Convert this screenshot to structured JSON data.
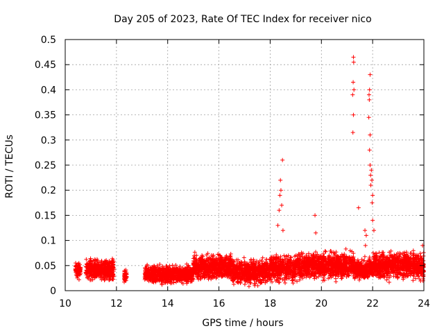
{
  "chart_data": {
    "type": "scatter",
    "title": "Day 205 of 2023, Rate Of TEC Index for receiver nico",
    "xlabel": "GPS time / hours",
    "ylabel": "ROTI / TECUs",
    "xlim": [
      10,
      24
    ],
    "ylim": [
      0,
      0.5
    ],
    "xticks": [
      10,
      12,
      14,
      16,
      18,
      20,
      22,
      24
    ],
    "yticks": [
      0,
      0.05,
      0.1,
      0.15,
      0.2,
      0.25,
      0.3,
      0.35,
      0.4,
      0.45,
      0.5
    ],
    "ytick_labels": [
      "0",
      "0.05",
      "0.1",
      "0.15",
      "0.2",
      "0.25",
      "0.3",
      "0.35",
      "0.4",
      "0.45",
      "0.5"
    ],
    "grid": true,
    "marker": "+",
    "color": "#ff0000",
    "series": [
      {
        "name": "ROTI",
        "description": "dense background band of ROTI values between ~0.01 and ~0.08 TECU/s from 10.4 to 24 h with gaps near 12.1-12.3 and 12.5-13.1 h",
        "band_segments": [
          {
            "x": [
              10.4,
              10.6
            ],
            "y": [
              0.02,
              0.06
            ]
          },
          {
            "x": [
              10.8,
              11.9
            ],
            "y": [
              0.015,
              0.07
            ]
          },
          {
            "x": [
              12.3,
              12.4
            ],
            "y": [
              0.015,
              0.045
            ]
          },
          {
            "x": [
              13.1,
              15.0
            ],
            "y": [
              0.01,
              0.055
            ]
          },
          {
            "x": [
              15.0,
              16.5
            ],
            "y": [
              0.015,
              0.08
            ]
          },
          {
            "x": [
              16.5,
              18.0
            ],
            "y": [
              0.005,
              0.07
            ]
          },
          {
            "x": [
              18.0,
              19.0
            ],
            "y": [
              0.01,
              0.08
            ]
          },
          {
            "x": [
              19.0,
              21.3
            ],
            "y": [
              0.015,
              0.085
            ]
          },
          {
            "x": [
              21.3,
              22.0
            ],
            "y": [
              0.015,
              0.07
            ]
          },
          {
            "x": [
              22.0,
              24.0
            ],
            "y": [
              0.015,
              0.085
            ]
          }
        ],
        "spikes": [
          {
            "x": 18.3,
            "y": 0.13
          },
          {
            "x": 18.35,
            "y": 0.16
          },
          {
            "x": 18.38,
            "y": 0.19
          },
          {
            "x": 18.4,
            "y": 0.22
          },
          {
            "x": 18.42,
            "y": 0.2
          },
          {
            "x": 18.45,
            "y": 0.17
          },
          {
            "x": 18.48,
            "y": 0.26
          },
          {
            "x": 18.5,
            "y": 0.12
          },
          {
            "x": 19.75,
            "y": 0.15
          },
          {
            "x": 19.78,
            "y": 0.115
          },
          {
            "x": 21.25,
            "y": 0.465
          },
          {
            "x": 21.26,
            "y": 0.455
          },
          {
            "x": 21.24,
            "y": 0.415
          },
          {
            "x": 21.27,
            "y": 0.4
          },
          {
            "x": 21.22,
            "y": 0.39
          },
          {
            "x": 21.25,
            "y": 0.35
          },
          {
            "x": 21.23,
            "y": 0.315
          },
          {
            "x": 21.45,
            "y": 0.165
          },
          {
            "x": 21.9,
            "y": 0.43
          },
          {
            "x": 21.88,
            "y": 0.4
          },
          {
            "x": 21.86,
            "y": 0.39
          },
          {
            "x": 21.87,
            "y": 0.38
          },
          {
            "x": 21.85,
            "y": 0.345
          },
          {
            "x": 21.9,
            "y": 0.31
          },
          {
            "x": 21.88,
            "y": 0.28
          },
          {
            "x": 21.9,
            "y": 0.25
          },
          {
            "x": 21.95,
            "y": 0.24
          },
          {
            "x": 21.92,
            "y": 0.23
          },
          {
            "x": 21.97,
            "y": 0.22
          },
          {
            "x": 21.93,
            "y": 0.21
          },
          {
            "x": 22.0,
            "y": 0.19
          },
          {
            "x": 21.98,
            "y": 0.175
          },
          {
            "x": 22.0,
            "y": 0.14
          },
          {
            "x": 22.05,
            "y": 0.12
          },
          {
            "x": 21.7,
            "y": 0.12
          },
          {
            "x": 21.75,
            "y": 0.11
          },
          {
            "x": 21.72,
            "y": 0.09
          },
          {
            "x": 23.95,
            "y": 0.09
          }
        ]
      }
    ]
  }
}
